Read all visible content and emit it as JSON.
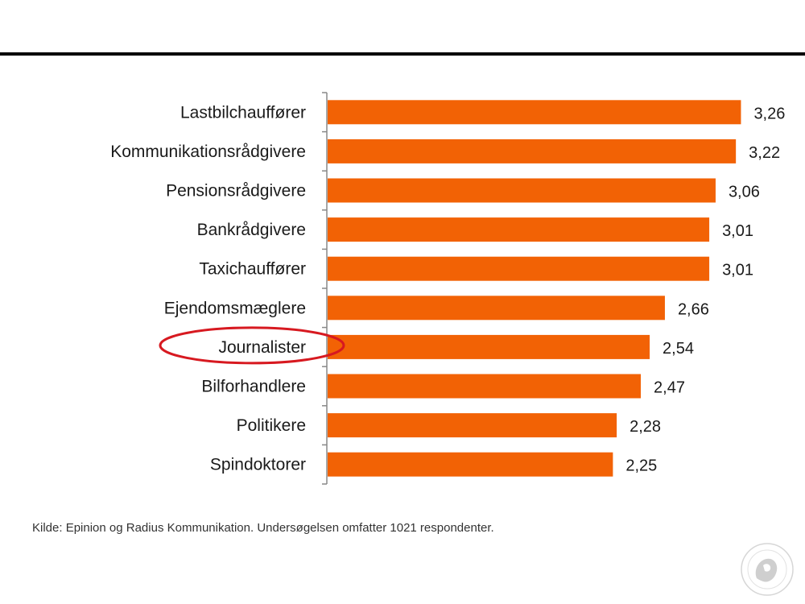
{
  "chart_data": {
    "type": "bar",
    "orientation": "horizontal",
    "categories": [
      "Lastbilchauffører",
      "Kommunikationsrådgivere",
      "Pensionsrådgivere",
      "Bankrådgivere",
      "Taxichauffører",
      "Ejendomsmæglere",
      "Journalister",
      "Bilforhandlere",
      "Politikere",
      "Spindoktorer"
    ],
    "values": [
      3.26,
      3.22,
      3.06,
      3.01,
      3.01,
      2.66,
      2.54,
      2.47,
      2.28,
      2.25
    ],
    "value_labels": [
      "3,26",
      "3,22",
      "3,06",
      "3,01",
      "3,01",
      "2,66",
      "2,54",
      "2,47",
      "2,28",
      "2,25"
    ],
    "xlim": [
      0,
      3.4
    ],
    "highlighted_category": "Journalister",
    "highlight_style": "red-ellipse",
    "grid": false,
    "title": "",
    "xlabel": "",
    "ylabel": ""
  },
  "source_note": "Kilde: Epinion og Radius Kommunikation. Undersøgelsen omfatter 1021 respondenter.",
  "colors": {
    "bar": "#f26205",
    "highlight": "#d71920",
    "axis": "#888888",
    "text": "#1a1a1a"
  },
  "logo": {
    "icon": "university-seal-icon"
  }
}
